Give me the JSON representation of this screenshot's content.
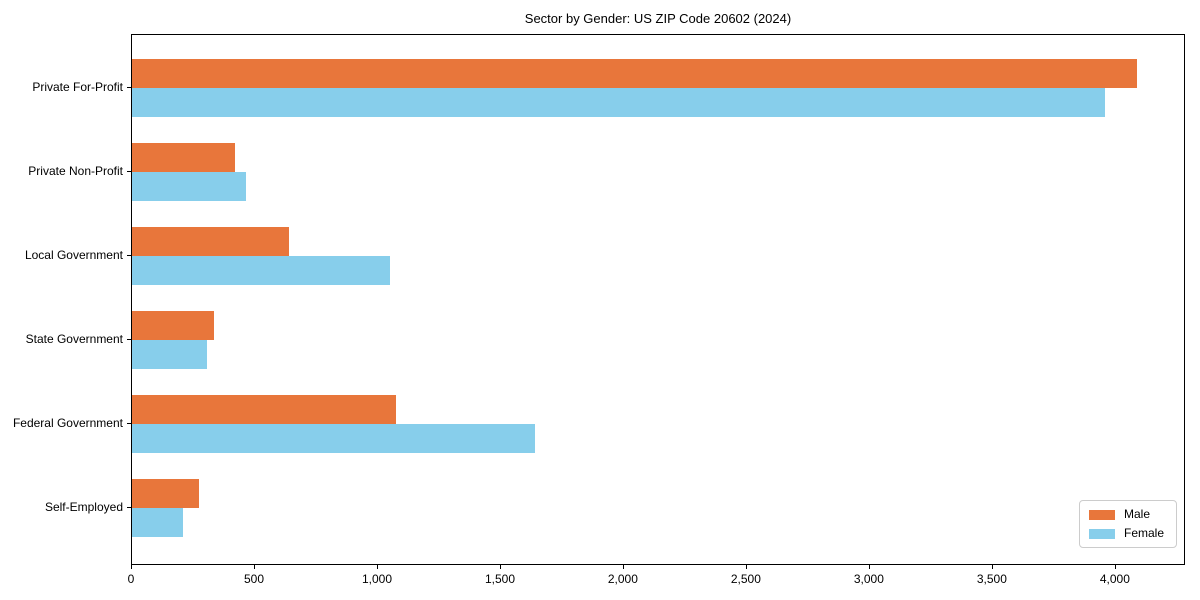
{
  "chart_data": {
    "type": "bar",
    "orientation": "horizontal",
    "title": "Sector by Gender: US ZIP Code 20602 (2024)",
    "categories": [
      "Private For-Profit",
      "Private Non-Profit",
      "Local Government",
      "State Government",
      "Federal Government",
      "Self-Employed"
    ],
    "series": [
      {
        "name": "Male",
        "color": "#E8763B",
        "values": [
          4085,
          419,
          638,
          333,
          1073,
          272
        ]
      },
      {
        "name": "Female",
        "color": "#87CEEB",
        "values": [
          3955,
          463,
          1049,
          303,
          1638,
          207
        ]
      }
    ],
    "xlim": [
      0,
      4285
    ],
    "xticks": [
      0,
      500,
      1000,
      1500,
      2000,
      2500,
      3000,
      3500,
      4000
    ],
    "xtick_labels": [
      "0",
      "500",
      "1,000",
      "1,500",
      "2,000",
      "2,500",
      "3,000",
      "3,500",
      "4,000"
    ],
    "xlabel": "",
    "ylabel": "",
    "grid": false,
    "legend_position": "lower right"
  }
}
